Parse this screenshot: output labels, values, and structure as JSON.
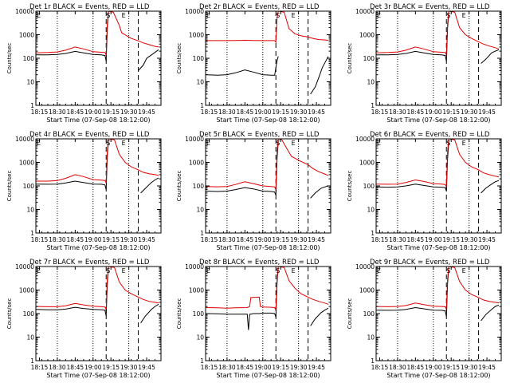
{
  "xlabel": "Start Time (07-Sep-08 18:12:00)",
  "ylabel": "Counts/sec",
  "x_tick_labels": [
    "18:15",
    "18:30",
    "18:45",
    "19:00",
    "19:15",
    "19:30",
    "19:45"
  ],
  "y_tick_labels": [
    "1",
    "10",
    "100",
    "1000",
    "10000"
  ],
  "colors": {
    "events": "#000000",
    "lld": "#e00000",
    "axes": "#000000",
    "background": "#ffffff"
  },
  "marker_labels": {
    "start": "E",
    "flare": "S",
    "end": "E"
  },
  "chart_data": [
    {
      "type": "line",
      "title": "Det 1r BLACK = Events, RED = LLD",
      "x_unit": "minutes after 18:12:00",
      "xlim": [
        0,
        105
      ],
      "ylim": [
        1,
        10000
      ],
      "log_y": true,
      "x_ticks": [
        3,
        18,
        33,
        48,
        63,
        78,
        93
      ],
      "dotted_x": [
        18,
        48,
        78
      ],
      "dashed_x": [
        59,
        86
      ],
      "series": [
        {
          "name": "Events",
          "color": "#000000",
          "x": [
            0,
            10,
            18,
            25,
            33,
            40,
            48,
            55,
            58,
            59,
            60,
            61,
            67,
            70,
            72,
            85,
            86,
            90,
            93,
            98,
            103
          ],
          "y": [
            140,
            140,
            145,
            160,
            195,
            170,
            145,
            140,
            130,
            75,
            2000,
            9000,
            null,
            null,
            null,
            null,
            30,
            50,
            100,
            150,
            230
          ]
        },
        {
          "name": "LLD",
          "color": "#e00000",
          "x": [
            0,
            10,
            18,
            25,
            33,
            40,
            48,
            55,
            58,
            59,
            60,
            61,
            65,
            70,
            72,
            80,
            86,
            90,
            95,
            100,
            103
          ],
          "y": [
            170,
            175,
            185,
            220,
            300,
            250,
            190,
            180,
            175,
            140,
            3000,
            10000,
            9000,
            2500,
            1200,
            700,
            550,
            450,
            380,
            320,
            300
          ]
        }
      ]
    },
    {
      "type": "line",
      "title": "Det 2r BLACK = Events, RED = LLD",
      "x_unit": "minutes after 18:12:00",
      "xlim": [
        0,
        105
      ],
      "ylim": [
        1,
        10000
      ],
      "log_y": true,
      "x_ticks": [
        3,
        18,
        33,
        48,
        63,
        78,
        93
      ],
      "dotted_x": [
        18,
        48,
        78
      ],
      "dashed_x": [
        59,
        86
      ],
      "series": [
        {
          "name": "Events",
          "color": "#000000",
          "x": [
            0,
            10,
            18,
            25,
            33,
            40,
            48,
            55,
            58,
            59,
            60,
            61,
            86,
            88,
            92,
            95,
            98,
            103
          ],
          "y": [
            20,
            19,
            20,
            24,
            32,
            26,
            20,
            19,
            19,
            40,
            80,
            120,
            null,
            3,
            6,
            15,
            40,
            120
          ]
        },
        {
          "name": "LLD",
          "color": "#e00000",
          "x": [
            0,
            10,
            18,
            25,
            33,
            40,
            48,
            55,
            58,
            59,
            60,
            61,
            66,
            70,
            75,
            80,
            86,
            90,
            95,
            100,
            103
          ],
          "y": [
            560,
            560,
            560,
            570,
            580,
            570,
            560,
            560,
            560,
            480,
            5000,
            10000,
            9000,
            1800,
            1100,
            900,
            800,
            700,
            620,
            600,
            580
          ]
        }
      ]
    },
    {
      "type": "line",
      "title": "Det 3r BLACK = Events, RED = LLD",
      "x_unit": "minutes after 18:12:00",
      "xlim": [
        0,
        105
      ],
      "ylim": [
        1,
        10000
      ],
      "log_y": true,
      "x_ticks": [
        3,
        18,
        33,
        48,
        63,
        78,
        93
      ],
      "dotted_x": [
        18,
        48,
        78
      ],
      "dashed_x": [
        59,
        86
      ],
      "series": [
        {
          "name": "Events",
          "color": "#000000",
          "x": [
            0,
            10,
            18,
            25,
            33,
            40,
            48,
            55,
            58,
            59,
            60,
            61,
            86,
            88,
            92,
            97,
            100,
            103
          ],
          "y": [
            140,
            140,
            145,
            160,
            195,
            170,
            145,
            140,
            130,
            75,
            2000,
            9000,
            null,
            60,
            90,
            170,
            200,
            230
          ]
        },
        {
          "name": "LLD",
          "color": "#e00000",
          "x": [
            0,
            10,
            18,
            25,
            33,
            40,
            48,
            55,
            58,
            59,
            60,
            61,
            66,
            70,
            75,
            80,
            86,
            90,
            95,
            100,
            103
          ],
          "y": [
            170,
            175,
            185,
            220,
            300,
            250,
            190,
            180,
            175,
            140,
            3000,
            10000,
            9000,
            2000,
            1000,
            700,
            500,
            400,
            330,
            280,
            250
          ]
        }
      ]
    },
    {
      "type": "line",
      "title": "Det 4r BLACK = Events, RED = LLD",
      "x_unit": "minutes after 18:12:00",
      "xlim": [
        0,
        105
      ],
      "ylim": [
        1,
        10000
      ],
      "log_y": true,
      "x_ticks": [
        3,
        18,
        33,
        48,
        63,
        78,
        93
      ],
      "dotted_x": [
        18,
        48,
        78
      ],
      "dashed_x": [
        59,
        86
      ],
      "series": [
        {
          "name": "Events",
          "color": "#000000",
          "x": [
            0,
            10,
            18,
            25,
            33,
            40,
            48,
            55,
            58,
            59,
            60,
            61,
            86,
            88,
            92,
            97,
            100,
            103
          ],
          "y": [
            120,
            118,
            120,
            135,
            160,
            140,
            120,
            118,
            110,
            70,
            2000,
            9000,
            null,
            50,
            80,
            140,
            180,
            220
          ]
        },
        {
          "name": "LLD",
          "color": "#e00000",
          "x": [
            0,
            10,
            18,
            25,
            33,
            40,
            48,
            55,
            58,
            59,
            60,
            61,
            66,
            70,
            75,
            80,
            86,
            90,
            95,
            100,
            103
          ],
          "y": [
            160,
            160,
            170,
            210,
            300,
            250,
            185,
            175,
            170,
            140,
            3000,
            10000,
            9000,
            2200,
            1000,
            650,
            480,
            380,
            330,
            300,
            280
          ]
        }
      ]
    },
    {
      "type": "line",
      "title": "Det 5r BLACK = Events, RED = LLD",
      "x_unit": "minutes after 18:12:00",
      "xlim": [
        0,
        105
      ],
      "ylim": [
        1,
        10000
      ],
      "log_y": true,
      "x_ticks": [
        3,
        18,
        33,
        48,
        63,
        78,
        93
      ],
      "dotted_x": [
        18,
        48,
        78
      ],
      "dashed_x": [
        59,
        86
      ],
      "series": [
        {
          "name": "Events",
          "color": "#000000",
          "x": [
            0,
            10,
            18,
            25,
            33,
            40,
            48,
            55,
            58,
            59,
            60,
            61,
            86,
            88,
            92,
            97,
            100,
            103
          ],
          "y": [
            60,
            58,
            60,
            70,
            85,
            75,
            60,
            58,
            55,
            40,
            1500,
            8000,
            null,
            30,
            50,
            80,
            90,
            100
          ]
        },
        {
          "name": "LLD",
          "color": "#e00000",
          "x": [
            0,
            10,
            18,
            25,
            33,
            40,
            48,
            55,
            58,
            59,
            60,
            61,
            64,
            68,
            72,
            80,
            86,
            90,
            95,
            100,
            103
          ],
          "y": [
            95,
            92,
            95,
            115,
            150,
            125,
            100,
            95,
            90,
            70,
            3000,
            10000,
            9000,
            4000,
            1800,
            1100,
            800,
            550,
            400,
            320,
            280
          ]
        }
      ]
    },
    {
      "type": "line",
      "title": "Det 6r BLACK = Events, RED = LLD",
      "x_unit": "minutes after 18:12:00",
      "xlim": [
        0,
        105
      ],
      "ylim": [
        1,
        10000
      ],
      "log_y": true,
      "x_ticks": [
        3,
        18,
        33,
        48,
        63,
        78,
        93
      ],
      "dotted_x": [
        18,
        48,
        78
      ],
      "dashed_x": [
        59,
        86
      ],
      "series": [
        {
          "name": "Events",
          "color": "#000000",
          "x": [
            0,
            10,
            18,
            25,
            33,
            40,
            48,
            55,
            58,
            59,
            60,
            61,
            86,
            88,
            92,
            97,
            100,
            103
          ],
          "y": [
            90,
            88,
            90,
            100,
            120,
            105,
            90,
            88,
            85,
            60,
            1500,
            8000,
            null,
            50,
            80,
            120,
            150,
            170
          ]
        },
        {
          "name": "LLD",
          "color": "#e00000",
          "x": [
            0,
            10,
            18,
            25,
            33,
            40,
            48,
            55,
            58,
            59,
            60,
            61,
            66,
            70,
            75,
            80,
            86,
            90,
            95,
            100,
            103
          ],
          "y": [
            120,
            118,
            120,
            140,
            180,
            155,
            125,
            120,
            115,
            90,
            3000,
            10000,
            9000,
            2200,
            1000,
            650,
            480,
            360,
            300,
            260,
            240
          ]
        }
      ]
    },
    {
      "type": "line",
      "title": "Det 7r BLACK = Events, RED = LLD",
      "x_unit": "minutes after 18:12:00",
      "xlim": [
        0,
        105
      ],
      "ylim": [
        1,
        10000
      ],
      "log_y": true,
      "x_ticks": [
        3,
        18,
        33,
        48,
        63,
        78,
        93
      ],
      "dotted_x": [
        18,
        48,
        78
      ],
      "dashed_x": [
        59,
        86
      ],
      "series": [
        {
          "name": "Events",
          "color": "#000000",
          "x": [
            0,
            10,
            18,
            25,
            33,
            40,
            48,
            55,
            58,
            59,
            60,
            61,
            86,
            88,
            92,
            97,
            100,
            103
          ],
          "y": [
            150,
            145,
            145,
            155,
            185,
            165,
            150,
            145,
            140,
            80,
            2000,
            9000,
            null,
            40,
            80,
            150,
            200,
            250
          ]
        },
        {
          "name": "LLD",
          "color": "#e00000",
          "x": [
            0,
            10,
            18,
            25,
            33,
            40,
            48,
            55,
            58,
            59,
            60,
            61,
            66,
            70,
            75,
            80,
            86,
            90,
            95,
            100,
            103
          ],
          "y": [
            200,
            195,
            195,
            215,
            270,
            235,
            205,
            195,
            190,
            150,
            3000,
            10000,
            9000,
            2200,
            1000,
            700,
            500,
            400,
            330,
            300,
            280
          ]
        }
      ]
    },
    {
      "type": "line",
      "title": "Det 8r BLACK = Events, RED = LLD",
      "x_unit": "minutes after 18:12:00",
      "xlim": [
        0,
        105
      ],
      "ylim": [
        1,
        10000
      ],
      "log_y": true,
      "x_ticks": [
        3,
        18,
        33,
        48,
        63,
        78,
        93
      ],
      "dotted_x": [
        18,
        48,
        78
      ],
      "dashed_x": [
        59,
        86
      ],
      "series": [
        {
          "name": "Events",
          "color": "#000000",
          "x": [
            0,
            10,
            18,
            25,
            35,
            36,
            37,
            38,
            40,
            45,
            48,
            55,
            58,
            59,
            60,
            61,
            86,
            88,
            92,
            97,
            100,
            103
          ],
          "y": [
            100,
            98,
            95,
            95,
            95,
            20,
            95,
            95,
            100,
            100,
            105,
            105,
            100,
            70,
            2000,
            9000,
            null,
            30,
            60,
            110,
            140,
            170
          ]
        },
        {
          "name": "LLD",
          "color": "#e00000",
          "x": [
            0,
            10,
            18,
            25,
            35,
            37,
            38,
            45,
            46,
            48,
            55,
            58,
            59,
            60,
            61,
            66,
            70,
            75,
            80,
            86,
            90,
            95,
            100,
            103
          ],
          "y": [
            180,
            175,
            170,
            175,
            180,
            200,
            480,
            500,
            200,
            190,
            185,
            180,
            140,
            3000,
            10000,
            9000,
            2500,
            1200,
            700,
            500,
            400,
            330,
            280,
            250
          ]
        }
      ]
    },
    {
      "type": "line",
      "title": "Det 9r BLACK = Events, RED = LLD",
      "x_unit": "minutes after 18:12:00",
      "xlim": [
        0,
        105
      ],
      "ylim": [
        1,
        10000
      ],
      "log_y": true,
      "x_ticks": [
        3,
        18,
        33,
        48,
        63,
        78,
        93
      ],
      "dotted_x": [
        18,
        48,
        78
      ],
      "dashed_x": [
        59,
        86
      ],
      "series": [
        {
          "name": "Events",
          "color": "#000000",
          "x": [
            0,
            10,
            18,
            25,
            33,
            40,
            48,
            55,
            58,
            59,
            60,
            61,
            86,
            88,
            92,
            97,
            100,
            103
          ],
          "y": [
            140,
            138,
            140,
            150,
            180,
            160,
            140,
            138,
            130,
            75,
            2000,
            9000,
            null,
            50,
            90,
            150,
            200,
            230
          ]
        },
        {
          "name": "LLD",
          "color": "#e00000",
          "x": [
            0,
            10,
            18,
            25,
            33,
            40,
            48,
            55,
            58,
            59,
            60,
            61,
            66,
            70,
            75,
            80,
            86,
            90,
            95,
            100,
            103
          ],
          "y": [
            200,
            195,
            200,
            220,
            280,
            240,
            205,
            200,
            195,
            150,
            3000,
            10000,
            9000,
            2300,
            1000,
            650,
            480,
            380,
            330,
            300,
            280
          ]
        }
      ]
    }
  ]
}
